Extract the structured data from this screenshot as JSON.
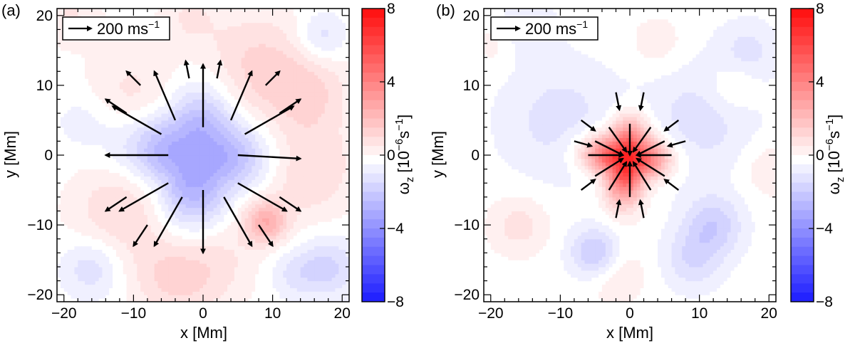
{
  "figure": {
    "panels": [
      {
        "label": "(a)",
        "legend_text": "200 ms",
        "legend_sup": "−1",
        "xlabel": "x [Mm]",
        "ylabel": "y [Mm]",
        "colorbar_label": "ω",
        "colorbar_sub": "z",
        "colorbar_unit": "[10",
        "colorbar_unit_sup": "−6",
        "colorbar_unit_tail": "s",
        "colorbar_unit_sup2": "−1",
        "colorbar_unit_close": "]"
      },
      {
        "label": "(b)",
        "legend_text": "200 ms",
        "legend_sup": "−1",
        "xlabel": "x [Mm]",
        "ylabel": "y [Mm]",
        "colorbar_label": "ω",
        "colorbar_sub": "z",
        "colorbar_unit": "[10",
        "colorbar_unit_sup": "−6",
        "colorbar_unit_tail": "s",
        "colorbar_unit_sup2": "−1",
        "colorbar_unit_close": "]"
      }
    ],
    "colors": {
      "positive": "#ff1a1a",
      "negative": "#1a1aff",
      "zero": "#ffffff",
      "arrow": "#000000"
    }
  },
  "chart_data": [
    {
      "type": "heatmap",
      "panel": "(a)",
      "xlabel": "x [Mm]",
      "ylabel": "y [Mm]",
      "xlim": [
        -21,
        21
      ],
      "ylim": [
        -21,
        21
      ],
      "xticks": [
        -20,
        -10,
        0,
        10,
        20
      ],
      "yticks": [
        -20,
        -10,
        0,
        10,
        20
      ],
      "colorbar": {
        "label": "ωz [10−6s−1]",
        "range": [
          -8,
          8
        ],
        "ticks": [
          8,
          4,
          0,
          -4,
          -8
        ]
      },
      "field": {
        "background_blobs": [
          {
            "x": 8,
            "y": 12,
            "v": 1.5,
            "s": 6
          },
          {
            "x": -10,
            "y": 8,
            "v": 1.0,
            "s": 5
          },
          {
            "x": 15,
            "y": -2,
            "v": 1.3,
            "s": 5
          },
          {
            "x": -12,
            "y": -8,
            "v": 1.2,
            "s": 5
          },
          {
            "x": 9,
            "y": -9.5,
            "v": 2.5,
            "s": 2.2
          },
          {
            "x": 0,
            "y": -15,
            "v": 1.2,
            "s": 5
          },
          {
            "x": -5,
            "y": -18,
            "v": 0.9,
            "s": 4
          },
          {
            "x": 16,
            "y": 9,
            "v": 0.9,
            "s": 4
          },
          {
            "x": -16,
            "y": -16,
            "v": -1.2,
            "s": 3
          },
          {
            "x": 18,
            "y": -16,
            "v": -1.4,
            "s": 3
          },
          {
            "x": 17,
            "y": 17,
            "v": -1.2,
            "s": 2.5
          },
          {
            "x": -17,
            "y": 5,
            "v": -0.6,
            "s": 3
          },
          {
            "x": 13,
            "y": -17,
            "v": -0.8,
            "s": 2.5
          },
          {
            "x": -19,
            "y": 20,
            "v": 0.8,
            "s": 3
          },
          {
            "x": -2,
            "y": 20,
            "v": 0.7,
            "s": 3
          }
        ],
        "core": {
          "x": -1,
          "y": 0,
          "v": -3.2,
          "s": 5.0,
          "flat": 2.2
        }
      },
      "arrows": [
        {
          "x": 0,
          "y": 4,
          "u": 0,
          "v": 9
        },
        {
          "x": -4,
          "y": 5,
          "u": -3,
          "v": 7
        },
        {
          "x": 4,
          "y": 5,
          "u": 3,
          "v": 7
        },
        {
          "x": -6,
          "y": 3,
          "u": -7,
          "v": 4
        },
        {
          "x": 6,
          "y": 3,
          "u": 7,
          "v": 4
        },
        {
          "x": -5,
          "y": 0,
          "u": -9,
          "v": 0
        },
        {
          "x": 5,
          "y": 0,
          "u": 9,
          "v": -0.5
        },
        {
          "x": -5,
          "y": -4,
          "u": -7,
          "v": -4
        },
        {
          "x": 5,
          "y": -4,
          "u": 7,
          "v": -4
        },
        {
          "x": -3,
          "y": -6,
          "u": -4,
          "v": -7
        },
        {
          "x": 3,
          "y": -6,
          "u": 4,
          "v": -7
        },
        {
          "x": 0,
          "y": -5,
          "u": 0,
          "v": -9
        },
        {
          "x": 9,
          "y": 10,
          "u": 2,
          "v": 2
        },
        {
          "x": -9,
          "y": 10,
          "u": -2,
          "v": 2
        },
        {
          "x": 11,
          "y": 6,
          "u": 3,
          "v": 2
        },
        {
          "x": -11,
          "y": 6,
          "u": -3,
          "v": 2
        },
        {
          "x": 11,
          "y": -6,
          "u": 3,
          "v": -2
        },
        {
          "x": -11,
          "y": -6,
          "u": -3,
          "v": -2
        },
        {
          "x": 8,
          "y": -10,
          "u": 2,
          "v": -3
        },
        {
          "x": -8,
          "y": -10,
          "u": -2,
          "v": -3
        },
        {
          "x": 2,
          "y": 11,
          "u": 0.5,
          "v": 2.5
        },
        {
          "x": -2,
          "y": 11,
          "u": -0.5,
          "v": 2.5
        }
      ]
    },
    {
      "type": "heatmap",
      "panel": "(b)",
      "xlabel": "x [Mm]",
      "ylabel": "y [Mm]",
      "xlim": [
        -21,
        21
      ],
      "ylim": [
        -21,
        21
      ],
      "xticks": [
        -20,
        -10,
        0,
        10,
        20
      ],
      "yticks": [
        -20,
        -10,
        0,
        10,
        20
      ],
      "colorbar": {
        "label": "ωz [10−6s−1]",
        "range": [
          -8,
          8
        ],
        "ticks": [
          8,
          4,
          0,
          -4,
          -8
        ]
      },
      "field": {
        "background_blobs": [
          {
            "x": -10,
            "y": 5,
            "v": -1.0,
            "s": 6
          },
          {
            "x": 10,
            "y": 5,
            "v": -1.0,
            "s": 6
          },
          {
            "x": -5,
            "y": -14,
            "v": -2.0,
            "s": 2.5
          },
          {
            "x": 12,
            "y": -10,
            "v": -1.6,
            "s": 3
          },
          {
            "x": -15,
            "y": 18,
            "v": -0.8,
            "s": 3
          },
          {
            "x": 17,
            "y": 15,
            "v": -0.9,
            "s": 3
          },
          {
            "x": 9,
            "y": -15,
            "v": -1.2,
            "s": 3
          },
          {
            "x": -16,
            "y": -10,
            "v": 1.0,
            "s": 3
          },
          {
            "x": 15,
            "y": 10,
            "v": 0.8,
            "s": 2.5
          },
          {
            "x": -2,
            "y": -17,
            "v": 0.8,
            "s": 3
          },
          {
            "x": 20,
            "y": -2,
            "v": 0.7,
            "s": 3
          },
          {
            "x": -19,
            "y": 16,
            "v": 0.6,
            "s": 2.5
          },
          {
            "x": 4,
            "y": 16,
            "v": 0.6,
            "s": 3
          }
        ],
        "core": {
          "x": -0.5,
          "y": -0.5,
          "v": 8.0,
          "s": 3.2,
          "flat": 0
        }
      },
      "arrows": [
        {
          "x": 0,
          "y": 4.5,
          "u": 0,
          "v": -4.5
        },
        {
          "x": -3,
          "y": 4,
          "u": 2.5,
          "v": -3.5
        },
        {
          "x": 3,
          "y": 4,
          "u": -2.5,
          "v": -3.5
        },
        {
          "x": -5,
          "y": 2,
          "u": 4,
          "v": -2
        },
        {
          "x": 5,
          "y": 2,
          "u": -4,
          "v": -2
        },
        {
          "x": -6,
          "y": 0,
          "u": 5,
          "v": 0
        },
        {
          "x": 6,
          "y": 0,
          "u": -5,
          "v": 0
        },
        {
          "x": -5,
          "y": -3,
          "u": 4,
          "v": 2.5
        },
        {
          "x": 5,
          "y": -3,
          "u": -4,
          "v": 2.5
        },
        {
          "x": -3,
          "y": -5,
          "u": 2.5,
          "v": 4
        },
        {
          "x": 3,
          "y": -5,
          "u": -2.5,
          "v": 4
        },
        {
          "x": 0,
          "y": -6,
          "u": 0,
          "v": 5
        },
        {
          "x": -7,
          "y": 5,
          "u": 2,
          "v": -1.5
        },
        {
          "x": 7,
          "y": 5,
          "u": -2,
          "v": -1.5
        },
        {
          "x": -7,
          "y": -5,
          "u": 2,
          "v": 1.5
        },
        {
          "x": 7,
          "y": -5,
          "u": -2,
          "v": 1.5
        },
        {
          "x": -8,
          "y": 2,
          "u": 2.5,
          "v": -0.7
        },
        {
          "x": 8,
          "y": 2,
          "u": -2.5,
          "v": -0.7
        },
        {
          "x": -2,
          "y": 9,
          "u": 0.5,
          "v": -2.5
        },
        {
          "x": 2,
          "y": 9,
          "u": -0.5,
          "v": -2.5
        },
        {
          "x": -2,
          "y": -9,
          "u": 0.5,
          "v": 2.5
        },
        {
          "x": 2,
          "y": -9,
          "u": -0.5,
          "v": 2.5
        }
      ]
    }
  ]
}
